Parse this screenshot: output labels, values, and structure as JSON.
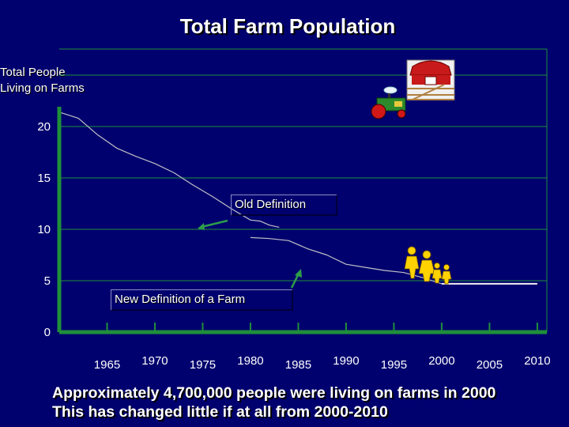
{
  "chart_data": {
    "type": "line",
    "title": "Total Farm Population",
    "ylabel": "Total People\nLiving on Farms",
    "xlabel": "",
    "ylim": [
      0,
      25
    ],
    "xlim": [
      1960,
      2011
    ],
    "yticks": [
      0,
      5,
      10,
      15,
      20
    ],
    "xticks": [
      1965,
      1970,
      1975,
      1980,
      1985,
      1990,
      1995,
      2000,
      2005,
      2010
    ],
    "grid": "horizontal",
    "series": [
      {
        "name": "Old Definition",
        "x": [
          1960,
          1962,
          1964,
          1966,
          1968,
          1970,
          1972,
          1974,
          1976,
          1978,
          1980,
          1981,
          1982,
          1983
        ],
        "y": [
          21.4,
          20.8,
          19.2,
          17.9,
          17.1,
          16.4,
          15.5,
          14.3,
          13.2,
          12.0,
          10.9,
          10.8,
          10.4,
          10.2
        ]
      },
      {
        "name": "New Definition of a Farm",
        "x": [
          1980,
          1982,
          1984,
          1986,
          1988,
          1990,
          1992,
          1994,
          1996,
          1998,
          2000
        ],
        "y": [
          9.2,
          9.1,
          8.9,
          8.1,
          7.5,
          6.6,
          6.3,
          6.0,
          5.8,
          5.3,
          4.7
        ]
      },
      {
        "name": "2000-2010",
        "x": [
          2000,
          2010
        ],
        "y": [
          4.7,
          4.7
        ]
      }
    ]
  },
  "annotations": {
    "old_definition": "Old Definition",
    "new_definition": "New Definition of a Farm"
  },
  "footer": {
    "line1": "Approximately 4,700,000 people were living on farms in 2000",
    "line2": "This has changed little if at all from 2000-2010"
  },
  "icons": [
    "farm-barn-icon",
    "tractor-icon",
    "farm-family-icon"
  ],
  "colors": {
    "background": "#00006e",
    "axis": "#1f8f3a",
    "gridline": "#1f8f3a",
    "line": "#c0c0c8",
    "text": "#ffffff"
  }
}
